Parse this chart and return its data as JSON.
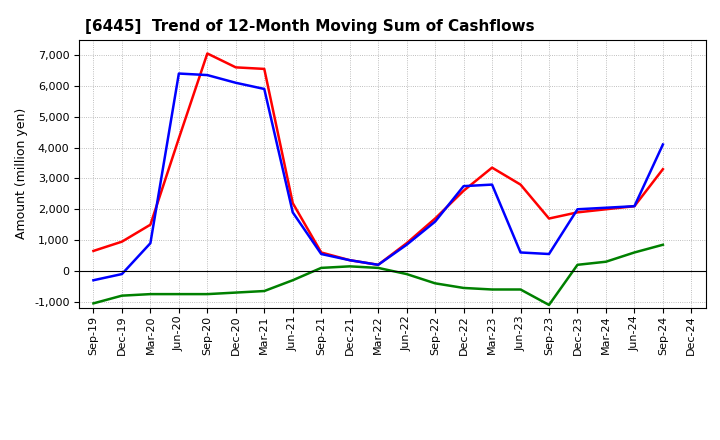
{
  "title": "[6445]  Trend of 12-Month Moving Sum of Cashflows",
  "ylabel": "Amount (million yen)",
  "x_labels": [
    "Sep-19",
    "Dec-19",
    "Mar-20",
    "Jun-20",
    "Sep-20",
    "Dec-20",
    "Mar-21",
    "Jun-21",
    "Sep-21",
    "Dec-21",
    "Mar-22",
    "Jun-22",
    "Sep-22",
    "Dec-22",
    "Mar-23",
    "Jun-23",
    "Sep-23",
    "Dec-23",
    "Mar-24",
    "Jun-24",
    "Sep-24",
    "Dec-24"
  ],
  "operating_cashflow": [
    650,
    950,
    1500,
    4300,
    7050,
    6600,
    6550,
    2200,
    600,
    350,
    200,
    900,
    1700,
    2600,
    3350,
    2800,
    1700,
    1900,
    2000,
    2100,
    3300,
    null
  ],
  "investing_cashflow": [
    -1050,
    -800,
    -750,
    -750,
    -750,
    -700,
    -650,
    -300,
    100,
    150,
    100,
    -100,
    -400,
    -550,
    -600,
    -600,
    -1100,
    200,
    300,
    600,
    850,
    null
  ],
  "free_cashflow": [
    -300,
    -100,
    900,
    6400,
    6350,
    6100,
    5900,
    1900,
    550,
    350,
    200,
    850,
    1600,
    2750,
    2800,
    600,
    550,
    2000,
    2050,
    2100,
    4100,
    null
  ],
  "ylim": [
    -1200,
    7500
  ],
  "yticks": [
    -1000,
    0,
    1000,
    2000,
    3000,
    4000,
    5000,
    6000,
    7000
  ],
  "operating_color": "#ff0000",
  "investing_color": "#008000",
  "free_color": "#0000ff",
  "background_color": "#ffffff",
  "grid_color": "#aaaaaa",
  "line_width": 1.8,
  "title_fontsize": 11,
  "axis_fontsize": 9,
  "tick_fontsize": 8,
  "legend_fontsize": 9
}
